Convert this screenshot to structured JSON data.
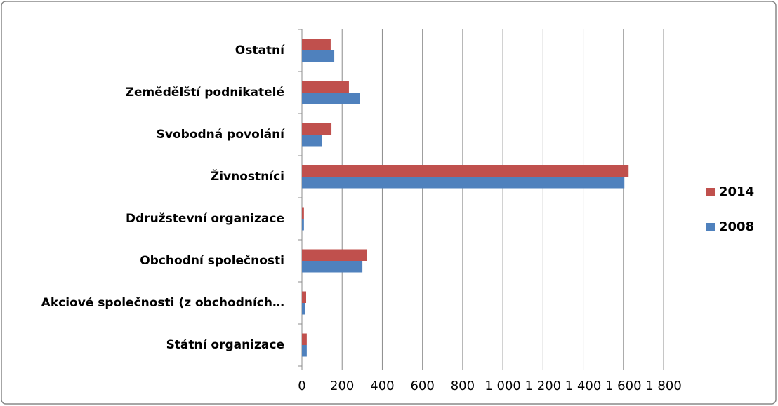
{
  "chart_data": {
    "type": "bar",
    "orientation": "horizontal",
    "categories": [
      "Ostatní",
      "Zemědělští podnikatelé",
      "Svobodná povolání",
      "Živnostníci",
      "Ddružstevní organizace",
      "Obchodní společnosti",
      "Akciové společnosti (z obchodních…",
      "Státní organizace"
    ],
    "series": [
      {
        "name": "2014",
        "color": "#c0504d",
        "values": [
          143,
          234,
          147,
          1626,
          10,
          325,
          21,
          24
        ]
      },
      {
        "name": "2008",
        "color": "#4f81bd",
        "values": [
          161,
          290,
          98,
          1605,
          10,
          301,
          17,
          24
        ]
      }
    ],
    "xlim": [
      0,
      1800
    ],
    "xticks": [
      0,
      200,
      400,
      600,
      800,
      {
        "value": 1000,
        "label": "1 000"
      },
      {
        "value": 1200,
        "label": "1 200"
      },
      {
        "value": 1400,
        "label": "1 400"
      },
      {
        "value": 1600,
        "label": "1 600"
      },
      {
        "value": 1800,
        "label": "1 800"
      }
    ],
    "grid": true,
    "legend": "right"
  }
}
